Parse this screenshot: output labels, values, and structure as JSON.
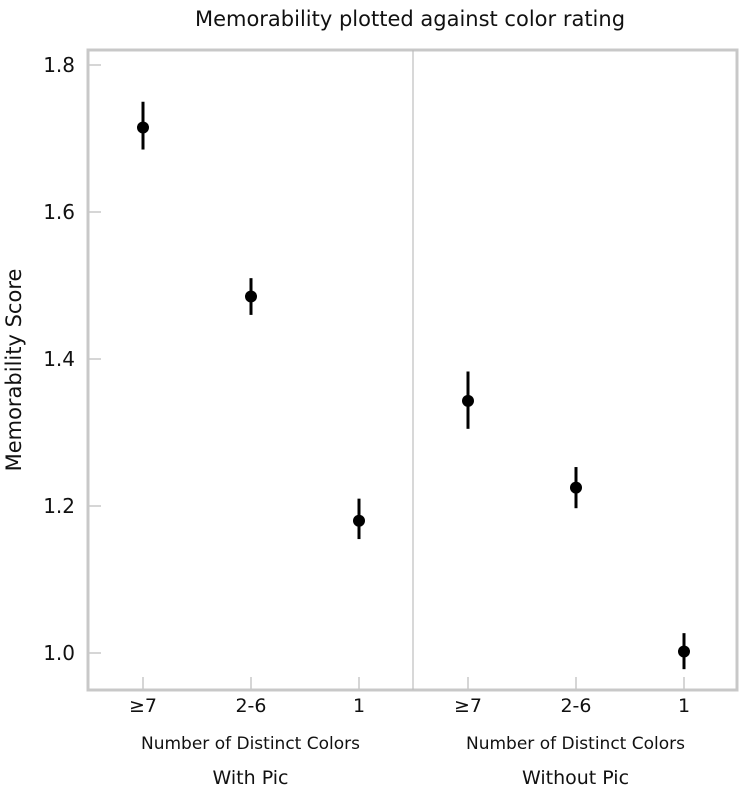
{
  "chart_data": {
    "type": "scatter",
    "title": "Memorability plotted against color rating",
    "ylabel": "Memorability Score",
    "ylim": [
      0.95,
      1.82
    ],
    "yticks": [
      1.0,
      1.2,
      1.4,
      1.6,
      1.8
    ],
    "ytick_labels": [
      "1.0",
      "1.2",
      "1.4",
      "1.6",
      "1.8"
    ],
    "grid": false,
    "marker_color": "#000000",
    "frame_color": "#c8c8c8",
    "panels": [
      {
        "name": "With Pic",
        "xlabel": "Number of Distinct Colors",
        "categories": [
          "≥7",
          "2-6",
          "1"
        ],
        "values": [
          1.715,
          1.485,
          1.18
        ],
        "err_low": [
          1.685,
          1.46,
          1.155
        ],
        "err_high": [
          1.75,
          1.51,
          1.21
        ]
      },
      {
        "name": "Without Pic",
        "xlabel": "Number of Distinct Colors",
        "categories": [
          "≥7",
          "2-6",
          "1"
        ],
        "values": [
          1.343,
          1.225,
          1.002
        ],
        "err_low": [
          1.305,
          1.197,
          0.978
        ],
        "err_high": [
          1.383,
          1.253,
          1.027
        ]
      }
    ]
  }
}
